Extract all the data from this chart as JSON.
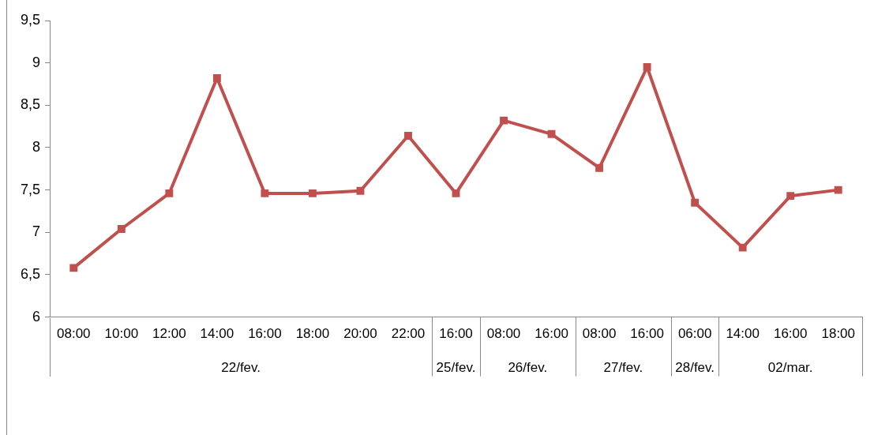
{
  "chart_data": {
    "type": "line",
    "categories": [
      "08:00",
      "10:00",
      "12:00",
      "14:00",
      "16:00",
      "18:00",
      "20:00",
      "22:00",
      "16:00",
      "08:00",
      "16:00",
      "08:00",
      "16:00",
      "06:00",
      "14:00",
      "16:00",
      "18:00"
    ],
    "series": [
      {
        "color": "#c0504d",
        "values": [
          6.58,
          7.04,
          7.46,
          8.82,
          7.46,
          7.46,
          7.49,
          8.14,
          7.46,
          8.32,
          8.16,
          7.76,
          8.95,
          7.35,
          6.82,
          7.43,
          7.5
        ]
      }
    ],
    "annotations": [
      "22/fev.",
      "25/fev.",
      "26/fev.",
      "27/fev.",
      "28/fev.",
      "02/mar."
    ],
    "ylim": [
      6,
      9.5
    ],
    "yticks": [
      6,
      {
        "value": 6.5,
        "label": "6,5"
      },
      7,
      {
        "value": 7.5,
        "label": "7,5"
      },
      8,
      {
        "value": 8.5,
        "label": "8,5"
      },
      9,
      {
        "value": 9.5,
        "label": "9,5"
      }
    ],
    "grid": false,
    "legend": false,
    "marker": "square",
    "line_style": "solid"
  }
}
